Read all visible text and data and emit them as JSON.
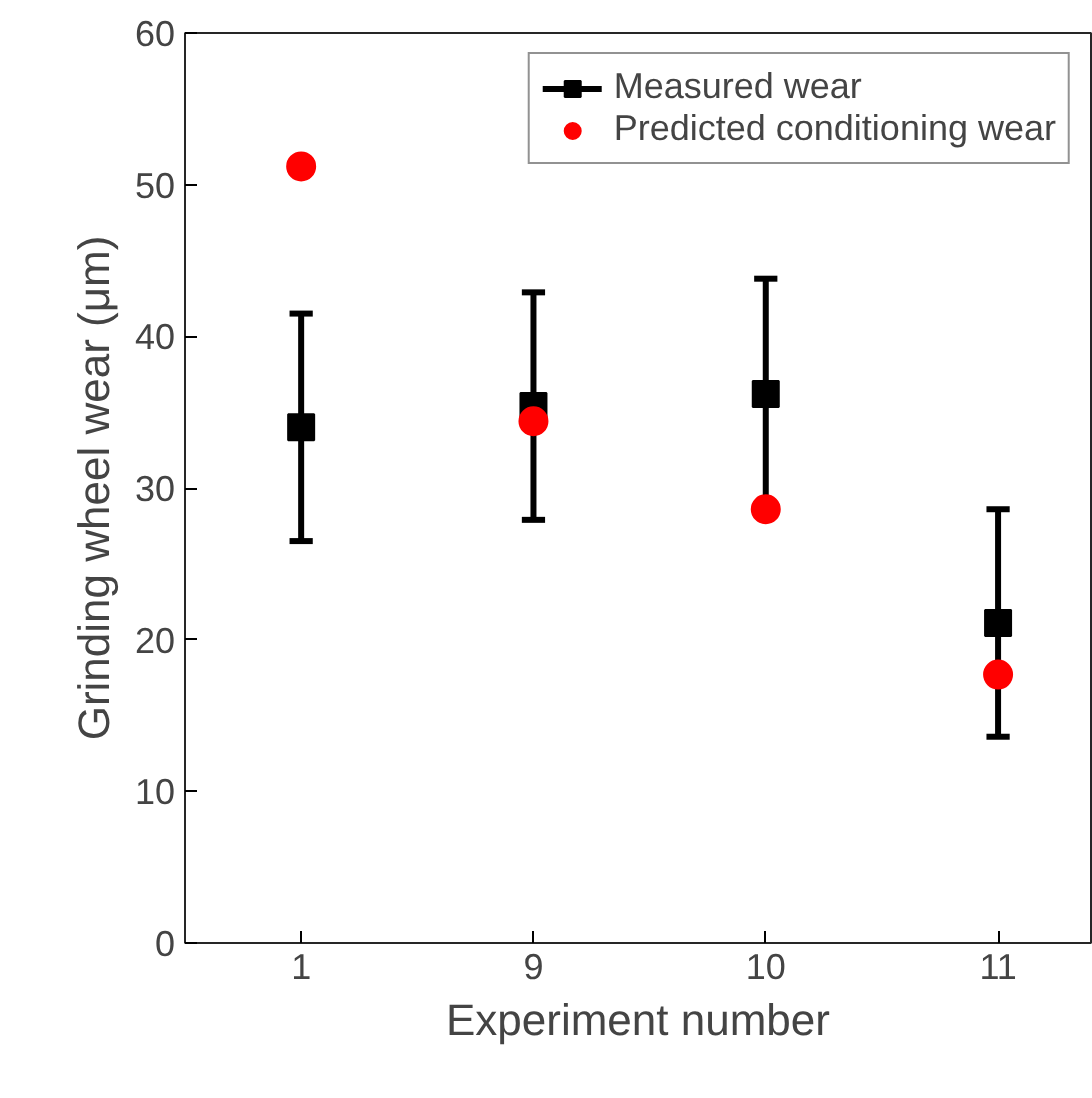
{
  "chart_data": {
    "type": "scatter",
    "xlabel": "Experiment number",
    "ylabel": "Grinding wheel wear (μm)",
    "categories": [
      "1",
      "9",
      "10",
      "11"
    ],
    "series": [
      {
        "name": "Measured wear",
        "color": "#000000",
        "marker": "square",
        "values": [
          34.0,
          35.4,
          36.2,
          21.1
        ],
        "errors": [
          7.5,
          7.5,
          7.6,
          7.5
        ]
      },
      {
        "name": "Predicted conditioning wear",
        "color": "#ff0000",
        "marker": "circle",
        "values": [
          51.2,
          34.4,
          28.6,
          17.7
        ]
      }
    ],
    "ylim": [
      0,
      60
    ],
    "yticks": [
      0,
      10,
      20,
      30,
      40,
      50,
      60
    ],
    "grid": false,
    "legend": "top right"
  }
}
